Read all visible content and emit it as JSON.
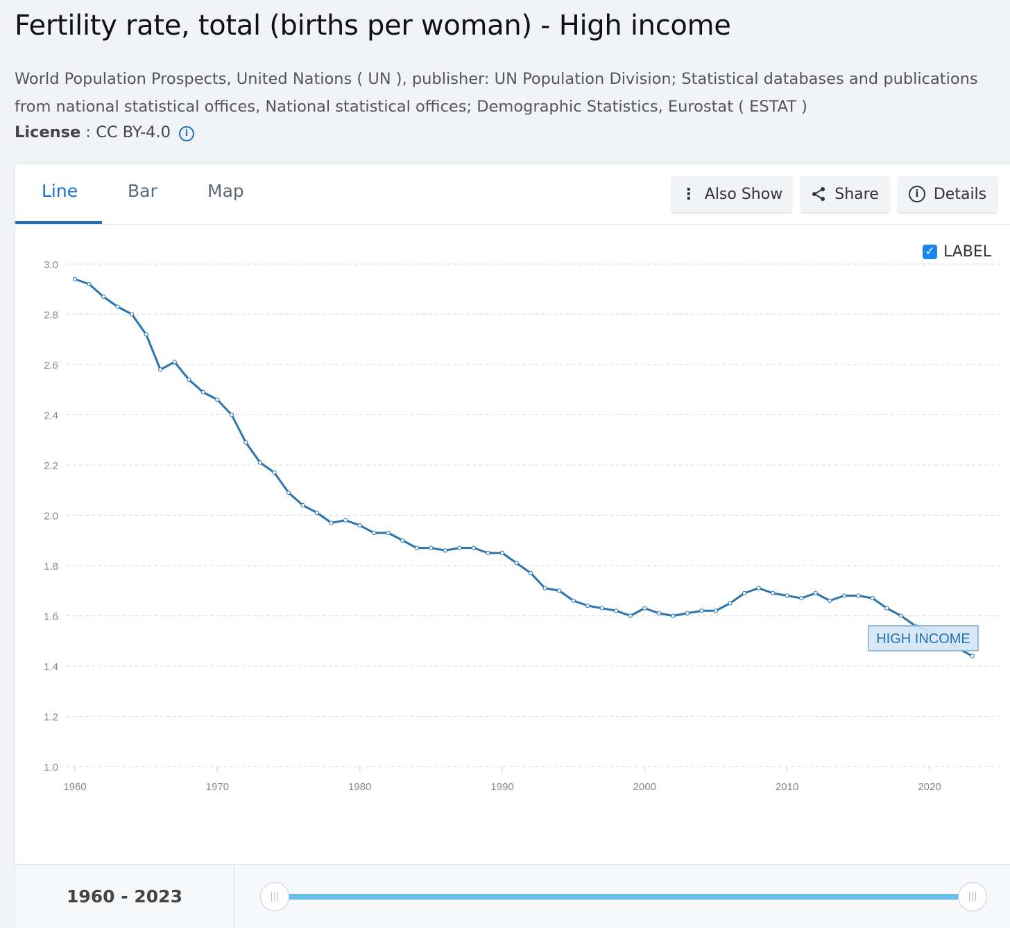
{
  "header": {
    "title": "Fertility rate, total (births per woman) - High income",
    "source": "World Population Prospects, United Nations ( UN ), publisher: UN Population Division; Statistical databases and publications from national statistical offices, National statistical offices; Demographic Statistics, Eurostat ( ESTAT )",
    "license_label": "License",
    "license_value": " : CC BY-4.0",
    "info_glyph": "i"
  },
  "tabs": [
    {
      "label": "Line"
    },
    {
      "label": "Bar"
    },
    {
      "label": "Map"
    }
  ],
  "toolbar": {
    "also_show": "Also Show",
    "share": "Share",
    "details": "Details",
    "details_glyph": "i"
  },
  "label_toggle": {
    "label": "LABEL",
    "checked": true,
    "check_glyph": "✓"
  },
  "footer": {
    "range_start": "1960",
    "range_sep": " - ",
    "range_end": "2023",
    "handle_glyph": "|||"
  },
  "colors": {
    "accent": "#1a6fc2",
    "line": "#2a74b0",
    "slider": "#6bbdf0"
  },
  "chart_data": {
    "type": "line",
    "title": "Fertility rate, total (births per woman) - High income",
    "xlabel": "",
    "ylabel": "",
    "ylim": [
      1.0,
      3.0
    ],
    "xlim": [
      1960,
      2023
    ],
    "yticks": [
      "1.0",
      "1.2",
      "1.4",
      "1.6",
      "1.8",
      "2.0",
      "2.2",
      "2.4",
      "2.6",
      "2.8",
      "3.0"
    ],
    "xticks": [
      "1960",
      "1970",
      "1980",
      "1990",
      "2000",
      "2010",
      "2020"
    ],
    "grid": true,
    "series": [
      {
        "name": "HIGH INCOME",
        "x": [
          1960,
          1961,
          1962,
          1963,
          1964,
          1965,
          1966,
          1967,
          1968,
          1969,
          1970,
          1971,
          1972,
          1973,
          1974,
          1975,
          1976,
          1977,
          1978,
          1979,
          1980,
          1981,
          1982,
          1983,
          1984,
          1985,
          1986,
          1987,
          1988,
          1989,
          1990,
          1991,
          1992,
          1993,
          1994,
          1995,
          1996,
          1997,
          1998,
          1999,
          2000,
          2001,
          2002,
          2003,
          2004,
          2005,
          2006,
          2007,
          2008,
          2009,
          2010,
          2011,
          2012,
          2013,
          2014,
          2015,
          2016,
          2017,
          2018,
          2019,
          2020,
          2021,
          2022,
          2023
        ],
        "values": [
          2.94,
          2.92,
          2.87,
          2.83,
          2.8,
          2.72,
          2.58,
          2.61,
          2.54,
          2.49,
          2.46,
          2.4,
          2.29,
          2.21,
          2.17,
          2.09,
          2.04,
          2.01,
          1.97,
          1.98,
          1.96,
          1.93,
          1.93,
          1.9,
          1.87,
          1.87,
          1.86,
          1.87,
          1.87,
          1.85,
          1.85,
          1.81,
          1.77,
          1.71,
          1.7,
          1.66,
          1.64,
          1.63,
          1.62,
          1.6,
          1.63,
          1.61,
          1.6,
          1.61,
          1.62,
          1.62,
          1.65,
          1.69,
          1.71,
          1.69,
          1.68,
          1.67,
          1.69,
          1.66,
          1.68,
          1.68,
          1.67,
          1.63,
          1.6,
          1.56,
          1.54,
          1.51,
          1.47,
          1.44
        ]
      }
    ]
  }
}
